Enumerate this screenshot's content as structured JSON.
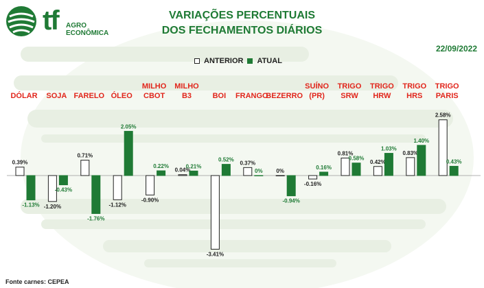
{
  "header": {
    "title_line1": "VARIAÇÕES PERCENTUAIS",
    "title_line2": "DOS FECHAMENTOS DIÁRIOS",
    "date": "22/09/2022"
  },
  "logo": {
    "mark": "tf",
    "sub_line1": "AGRO",
    "sub_line2": "ECONÔMICA"
  },
  "legend": {
    "previous": "ANTERIOR",
    "current": "ATUAL"
  },
  "colors": {
    "previous_fill": "#ffffff",
    "current_fill": "#1f7a35",
    "category": "#e1251b",
    "title": "#1e7a34",
    "background_stripe": "#e4ede0"
  },
  "footer": {
    "source": "Fonte carnes: CEPEA"
  },
  "chart_data": {
    "type": "bar",
    "categories": [
      [
        "DÓLAR"
      ],
      [
        "SOJA"
      ],
      [
        "FARELO"
      ],
      [
        "ÓLEO"
      ],
      [
        "MILHO",
        "CBOT"
      ],
      [
        "MILHO",
        "B3"
      ],
      [
        "BOI"
      ],
      [
        "FRANGO"
      ],
      [
        "BEZERRO"
      ],
      [
        "SUÍNO",
        "(PR)"
      ],
      [
        "TRIGO",
        "SRW"
      ],
      [
        "TRIGO",
        "HRW"
      ],
      [
        "TRIGO",
        "HRS"
      ],
      [
        "TRIGO",
        "PARIS"
      ]
    ],
    "series": [
      {
        "name": "ANTERIOR",
        "values": [
          0.39,
          -1.2,
          0.71,
          -1.12,
          -0.9,
          0.04,
          -3.41,
          0.37,
          0,
          -0.16,
          0.81,
          0.42,
          0.83,
          2.58
        ],
        "labels": [
          "0.39%",
          "-1.20%",
          "0.71%",
          "-1.12%",
          "-0.90%",
          "0.04%",
          "-3.41%",
          "0.37%",
          "0%",
          "-0.16%",
          "0.81%",
          "0.42%",
          "0.83%",
          "2.58%"
        ]
      },
      {
        "name": "ATUAL",
        "values": [
          -1.13,
          -0.43,
          -1.76,
          2.05,
          0.22,
          0.21,
          0.52,
          0,
          -0.94,
          0.16,
          0.58,
          1.03,
          1.4,
          0.43
        ],
        "labels": [
          "-1.13%",
          "-0.43%",
          "-1.76%",
          "2.05%",
          "0.22%",
          "0.21%",
          "0.52%",
          "0%",
          "-0.94%",
          "0.16%",
          "0.58%",
          "1.03%",
          "1.40%",
          "0.43%"
        ]
      }
    ],
    "unit": "%",
    "ylim": [
      -3.5,
      2.7
    ],
    "grid": false,
    "legend_position": "top-center"
  }
}
